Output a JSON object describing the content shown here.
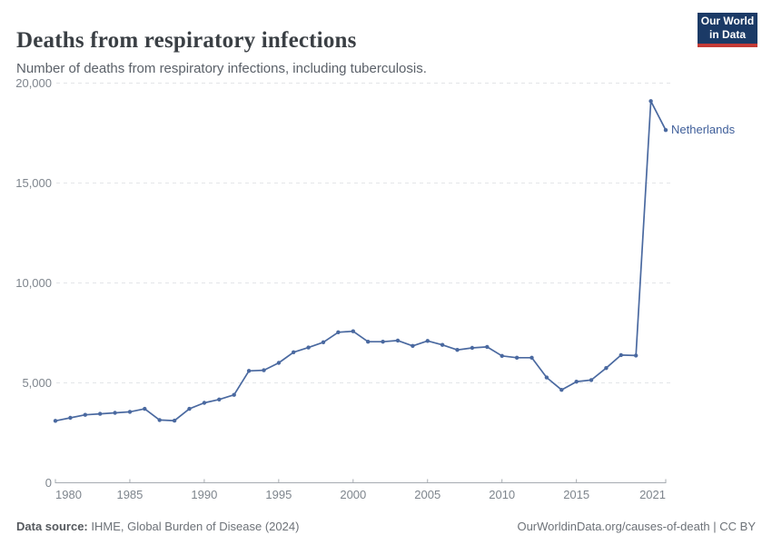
{
  "header": {
    "title": "Deaths from respiratory infections",
    "subtitle": "Number of deaths from respiratory infections, including tuberculosis.",
    "logo": {
      "line1": "Our World",
      "line2": "in Data"
    }
  },
  "colors": {
    "line": "#4a69a0",
    "entity_label": "#41609b",
    "logo_navy": "#1b3a66",
    "logo_red": "#c43a36",
    "gridline": "#e3e5e8",
    "axis": "#a6abb1",
    "tick_text": "#7e858d"
  },
  "chart_data": {
    "type": "line",
    "title": "Deaths from respiratory infections",
    "subtitle": "Number of deaths from respiratory infections, including tuberculosis.",
    "xlabel": "",
    "ylabel": "",
    "xlim": [
      1980,
      2021
    ],
    "ylim": [
      0,
      20000
    ],
    "grid": "dashed horizontal",
    "legend_position": "end-of-line label",
    "x_axis": {
      "tick_years": [
        1980,
        1985,
        1990,
        1995,
        2000,
        2005,
        2010,
        2015,
        2021
      ],
      "tick_labels": [
        "1980",
        "1985",
        "1990",
        "1995",
        "2000",
        "2005",
        "2010",
        "2015",
        "2021"
      ]
    },
    "y_axis": {
      "tick_values": [
        0,
        5000,
        10000,
        15000,
        20000
      ],
      "tick_labels": [
        "0",
        "5,000",
        "10,000",
        "15,000",
        "20,000"
      ]
    },
    "series": [
      {
        "name": "Netherlands",
        "x": [
          1980,
          1981,
          1982,
          1983,
          1984,
          1985,
          1986,
          1987,
          1988,
          1989,
          1990,
          1991,
          1992,
          1993,
          1994,
          1995,
          1996,
          1997,
          1998,
          1999,
          2000,
          2001,
          2002,
          2003,
          2004,
          2005,
          2006,
          2007,
          2008,
          2009,
          2010,
          2011,
          2012,
          2013,
          2014,
          2015,
          2016,
          2017,
          2018,
          2019,
          2020,
          2021
        ],
        "values": [
          3100,
          3250,
          3400,
          3450,
          3500,
          3550,
          3700,
          3140,
          3110,
          3700,
          4000,
          4170,
          4400,
          5600,
          5630,
          6000,
          6530,
          6770,
          7030,
          7530,
          7580,
          7060,
          7060,
          7120,
          6850,
          7100,
          6900,
          6650,
          6750,
          6800,
          6350,
          6260,
          6260,
          5270,
          4650,
          5060,
          5140,
          5740,
          6390,
          6370,
          19100,
          17650
        ]
      }
    ],
    "entity_label": "Netherlands"
  },
  "footer": {
    "datasource_label": "Data source:",
    "datasource_value": " IHME, Global Burden of Disease (2024)",
    "attribution": "OurWorldinData.org/causes-of-death | CC BY"
  }
}
